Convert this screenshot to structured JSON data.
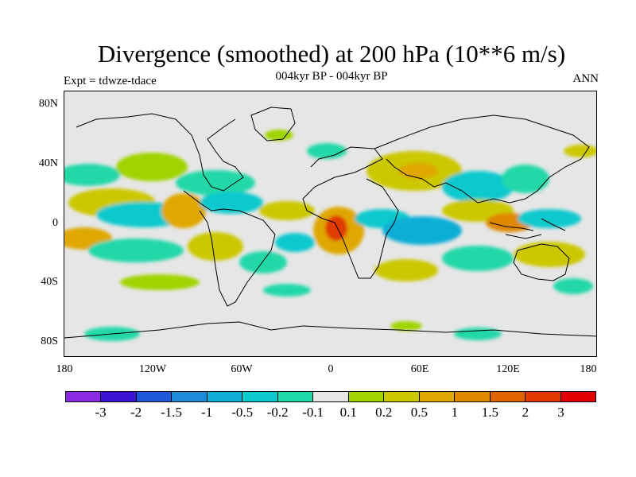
{
  "title": "Divergence (smoothed) at 200 hPa (10**6 m/s)",
  "subtitle_center": "004kyr BP - 004kyr BP",
  "subtitle_left": "Expt = tdwze-tdace",
  "subtitle_right": "ANN",
  "lat_labels": [
    "80N",
    "40N",
    "0",
    "40S",
    "80S"
  ],
  "lon_labels": [
    "180",
    "120W",
    "60W",
    "0",
    "60E",
    "120E",
    "180"
  ],
  "colorbar": {
    "colors": [
      "#8a2be2",
      "#3a14d2",
      "#1e58d9",
      "#1f8ad8",
      "#10aed6",
      "#0cc9cd",
      "#20d8a8",
      "#e6e6e6",
      "#a0d400",
      "#ccc800",
      "#dfa700",
      "#e08700",
      "#e06400",
      "#e03a00",
      "#e00000"
    ],
    "labels": [
      "-3",
      "-2",
      "-1.5",
      "-1",
      "-0.5",
      "-0.2",
      "-0.1",
      "0.1",
      "0.2",
      "0.5",
      "1",
      "1.5",
      "2",
      "3"
    ]
  },
  "map_colors": {
    "background": "#e6e6e6",
    "pos_weak": "#a0d400",
    "pos_mid": "#ccc800",
    "pos_strong": "#dfa700",
    "pos_stronger": "#e08700",
    "pos_max": "#e03a00",
    "neg_weak": "#20d8a8",
    "neg_mid": "#0cc9cd",
    "neg_strong": "#10aed6"
  }
}
